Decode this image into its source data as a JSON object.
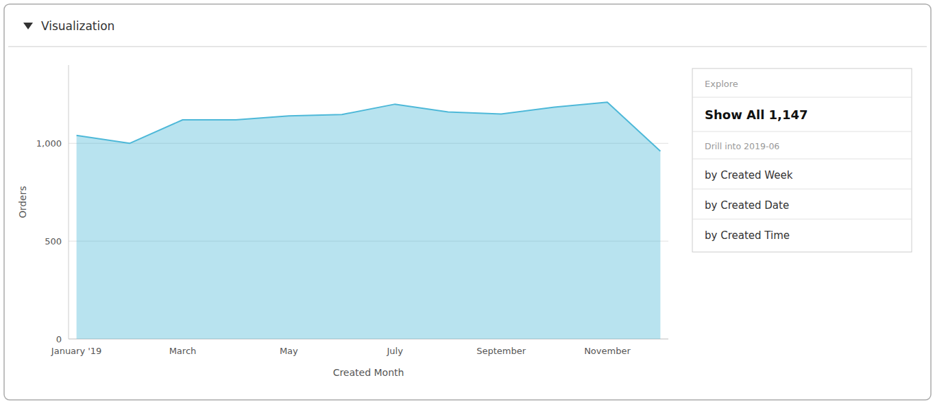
{
  "chart_data": {
    "type": "area",
    "title": "Visualization",
    "x_label": "Created Month",
    "y_label": "Orders",
    "categories": [
      "January '19",
      null,
      "March",
      null,
      "May",
      null,
      "July",
      null,
      "September",
      null,
      "November",
      null
    ],
    "values": [
      1040,
      1000,
      1120,
      1120,
      1140,
      1147,
      1200,
      1160,
      1150,
      1185,
      1210,
      960
    ],
    "color": "#4db8d8",
    "ylim": [
      0,
      1400
    ],
    "yticks": [
      0,
      500,
      {
        "value": 1000,
        "label": "1,000"
      }
    ],
    "grid": true,
    "annotations": [
      "Explore",
      "Show All 1,147",
      "Drill into 2019-06",
      "by Created Week",
      "by Created Date",
      "by Created Time"
    ]
  }
}
